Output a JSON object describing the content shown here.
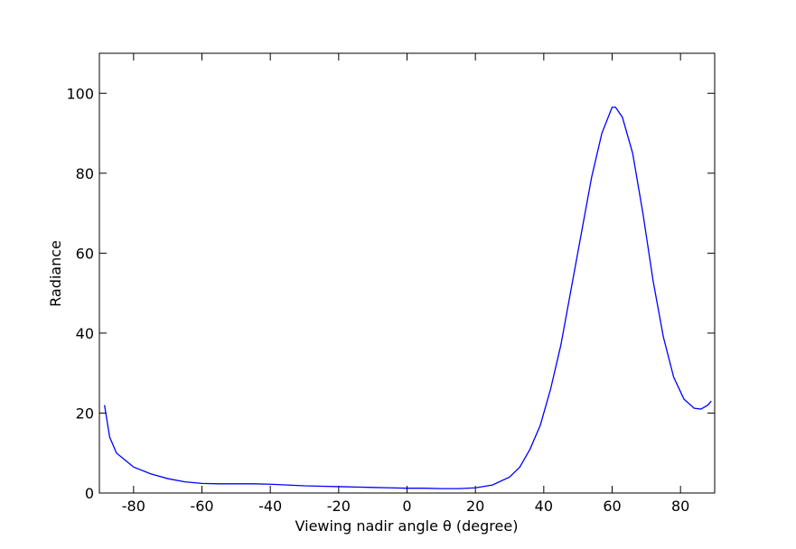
{
  "chart_data": {
    "type": "line",
    "x_label": "Viewing nadir angle θ (degree)",
    "y_label": "Radiance",
    "x": [
      -88.5,
      -87,
      -85,
      -80,
      -75,
      -70,
      -65,
      -60,
      -55,
      -50,
      -45,
      -40,
      -35,
      -30,
      -25,
      -20,
      -15,
      -10,
      -5,
      0,
      5,
      10,
      15,
      20,
      25,
      30,
      33,
      36,
      39,
      42,
      45,
      48,
      51,
      54,
      57,
      60,
      61,
      63,
      66,
      69,
      72,
      75,
      78,
      81,
      84,
      86,
      88,
      89
    ],
    "series": [
      {
        "name": "Radiance",
        "color": "#0000ff",
        "values": [
          22,
          14,
          10,
          6.5,
          4.8,
          3.6,
          2.8,
          2.4,
          2.3,
          2.3,
          2.3,
          2.2,
          2.0,
          1.8,
          1.7,
          1.6,
          1.5,
          1.4,
          1.3,
          1.2,
          1.2,
          1.1,
          1.1,
          1.3,
          2.0,
          4.0,
          6.5,
          11,
          17,
          26,
          37,
          51,
          65,
          79,
          90,
          96.5,
          96.5,
          94,
          85,
          70,
          53,
          39,
          29,
          23.5,
          21.2,
          21,
          22,
          23
        ]
      }
    ],
    "xlim": [
      -90,
      90
    ],
    "ylim": [
      0,
      110
    ],
    "xticks": [
      -80,
      -60,
      -40,
      -20,
      0,
      20,
      40,
      60,
      80
    ],
    "yticks": [
      0,
      20,
      40,
      60,
      80,
      100
    ]
  }
}
